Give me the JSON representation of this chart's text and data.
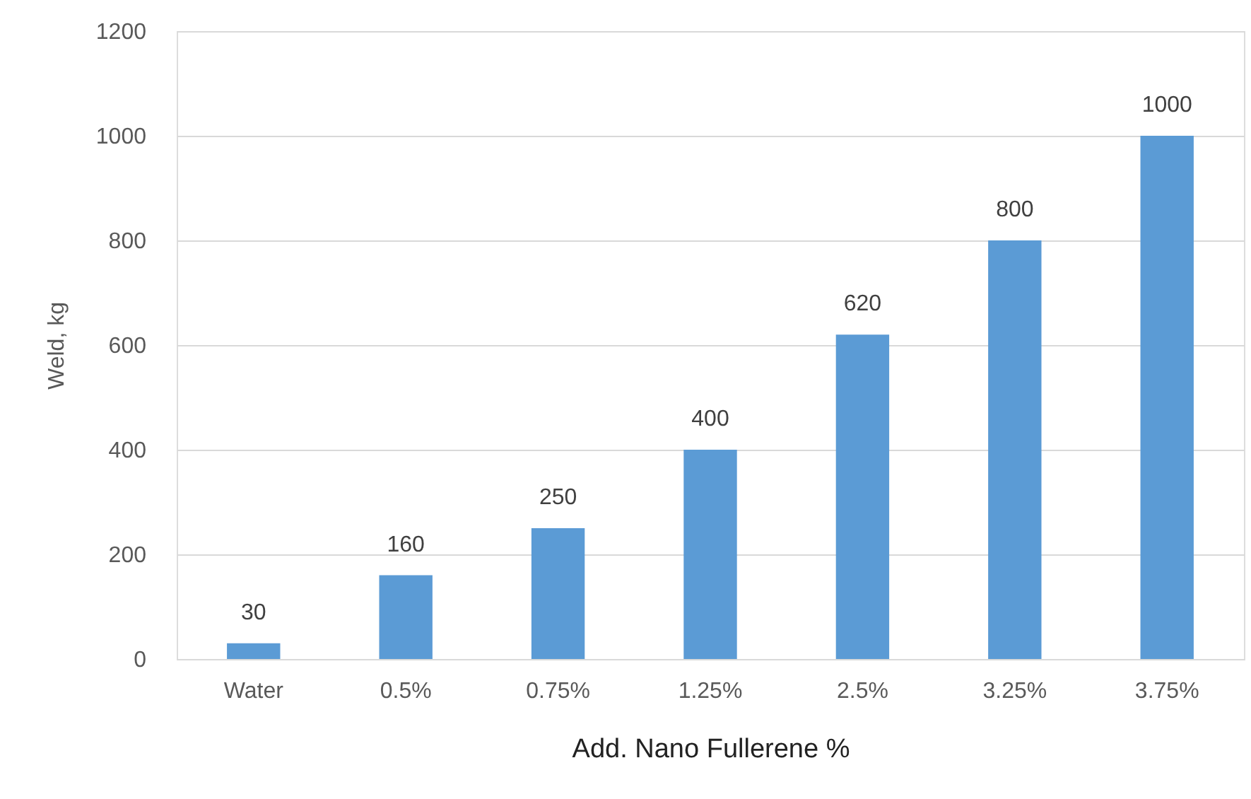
{
  "chart_data": {
    "type": "bar",
    "categories": [
      "Water",
      "0.5%",
      "0.75%",
      "1.25%",
      "2.5%",
      "3.25%",
      "3.75%"
    ],
    "values": [
      30,
      160,
      250,
      400,
      620,
      800,
      1000
    ],
    "color": "#5b9bd5",
    "xlabel": "Add. Nano Fullerene %",
    "ylabel": "Weld, kg",
    "ylim": [
      0,
      1200
    ],
    "yticks": [
      0,
      200,
      400,
      600,
      800,
      1000,
      1200
    ],
    "grid": "y",
    "data_labels": true
  }
}
